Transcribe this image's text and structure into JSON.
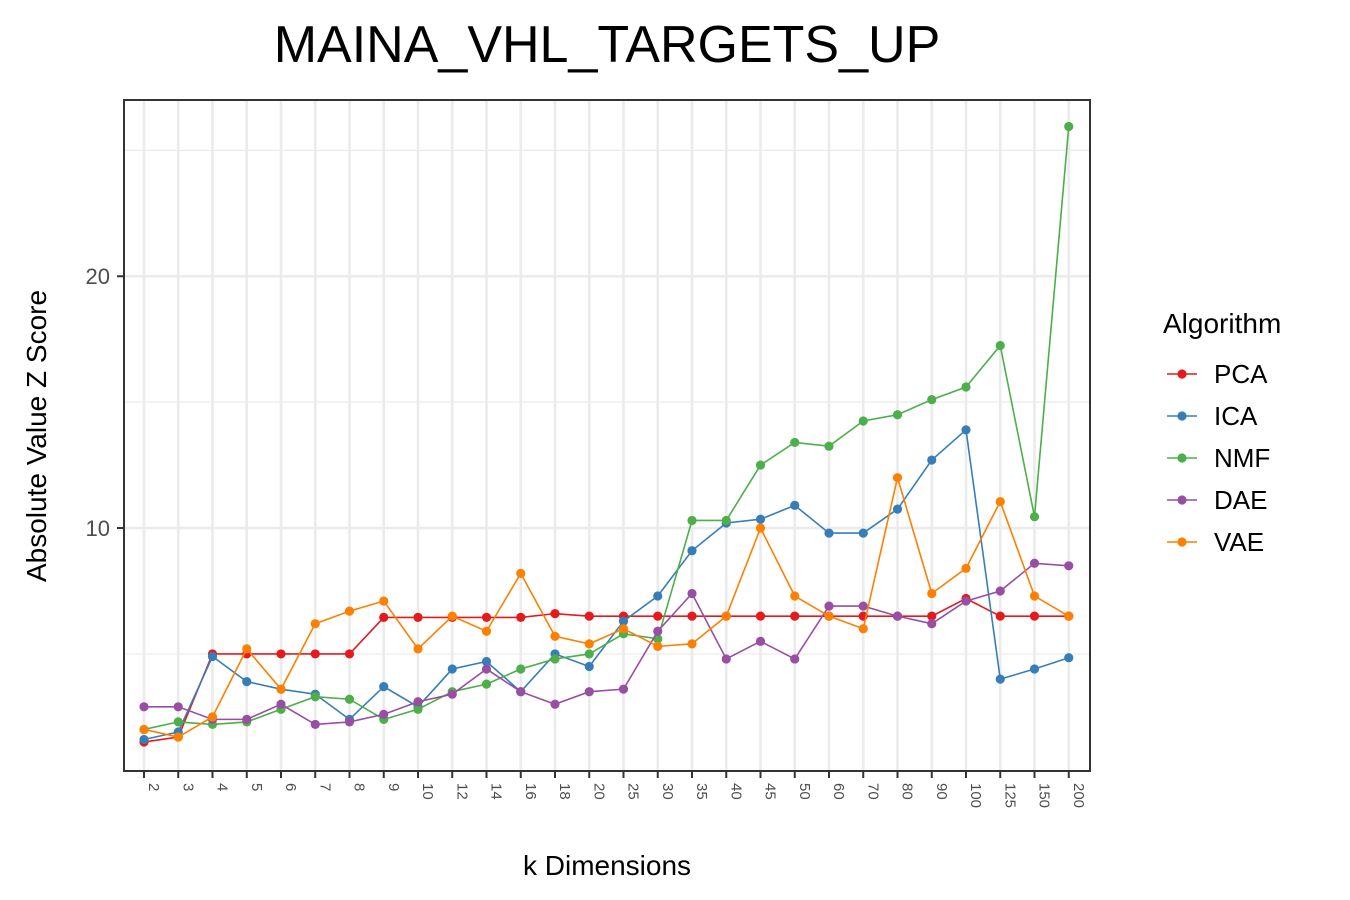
{
  "chart_data": {
    "type": "line",
    "title": "MAINA_VHL_TARGETS_UP",
    "xlabel": "k Dimensions",
    "ylabel": "Absolute Value Z Score",
    "categories": [
      "2",
      "3",
      "4",
      "5",
      "6",
      "7",
      "8",
      "9",
      "10",
      "12",
      "14",
      "16",
      "18",
      "20",
      "25",
      "30",
      "35",
      "40",
      "45",
      "50",
      "60",
      "70",
      "80",
      "90",
      "100",
      "125",
      "150",
      "200"
    ],
    "yticks": [
      10,
      20
    ],
    "ylim": [
      0.35,
      27
    ],
    "grid": true,
    "legend_title": "Algorithm",
    "legend_position": "right",
    "series": [
      {
        "name": "PCA",
        "color": "#e41a1c",
        "values": [
          1.5,
          1.7,
          5.0,
          5.0,
          5.0,
          5.0,
          5.0,
          6.45,
          6.45,
          6.45,
          6.45,
          6.45,
          6.6,
          6.5,
          6.5,
          6.5,
          6.5,
          6.5,
          6.5,
          6.5,
          6.5,
          6.5,
          6.5,
          6.5,
          7.2,
          6.5,
          6.5,
          6.5
        ]
      },
      {
        "name": "ICA",
        "color": "#377eb8",
        "values": [
          1.6,
          1.9,
          4.9,
          3.9,
          3.6,
          3.4,
          2.4,
          3.7,
          2.9,
          4.4,
          4.7,
          3.5,
          5.0,
          4.5,
          6.3,
          7.3,
          9.1,
          10.2,
          10.35,
          10.9,
          9.8,
          9.8,
          10.75,
          12.7,
          13.9,
          4.0,
          4.4,
          4.85
        ]
      },
      {
        "name": "NMF",
        "color": "#4daf4a",
        "values": [
          2.0,
          2.3,
          2.2,
          2.3,
          2.8,
          3.3,
          3.2,
          2.4,
          2.8,
          3.5,
          3.8,
          4.4,
          4.8,
          5.0,
          5.8,
          5.6,
          10.3,
          10.3,
          12.5,
          13.4,
          13.25,
          14.25,
          14.5,
          15.1,
          15.6,
          17.25,
          10.45,
          25.95
        ]
      },
      {
        "name": "DAE",
        "color": "#984ea3",
        "values": [
          2.9,
          2.9,
          2.4,
          2.4,
          3.0,
          2.2,
          2.3,
          2.6,
          3.1,
          3.4,
          4.4,
          3.5,
          3.0,
          3.5,
          3.6,
          5.9,
          7.4,
          4.8,
          5.5,
          4.8,
          6.9,
          6.9,
          6.5,
          6.2,
          7.1,
          7.5,
          8.6,
          8.5
        ]
      },
      {
        "name": "VAE",
        "color": "#ff7f00",
        "values": [
          2.0,
          1.7,
          2.5,
          5.2,
          3.6,
          6.2,
          6.7,
          7.1,
          5.2,
          6.5,
          5.9,
          8.2,
          5.7,
          5.4,
          6.0,
          5.3,
          5.4,
          6.5,
          10.0,
          7.3,
          6.5,
          6.0,
          12.0,
          7.4,
          8.4,
          11.05,
          7.3,
          6.5
        ]
      }
    ]
  }
}
